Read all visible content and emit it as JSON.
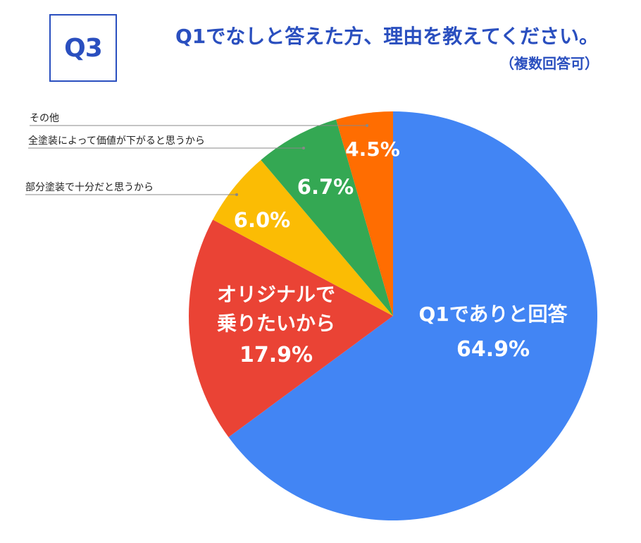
{
  "header": {
    "question_tag": "Q3",
    "title": "Q1でなしと答えた方、理由を教えてください。",
    "subtitle": "（複数回答可）"
  },
  "chart_data": {
    "type": "pie",
    "title": "Q1でなしと答えた方、理由を教えてください。",
    "subtitle": "（複数回答可）",
    "slices": [
      {
        "label": "Q1でありと回答",
        "value": 64.9,
        "display": "64.9%",
        "color": "#4285f4",
        "label_style": "inside"
      },
      {
        "label": "オリジナルで乗りたいから",
        "value": 17.9,
        "display": "17.9%",
        "color": "#ea4335",
        "label_style": "inside"
      },
      {
        "label": "部分塗装で十分だと思うから",
        "value": 6.0,
        "display": "6.0%",
        "color": "#fbbc04",
        "label_style": "leader"
      },
      {
        "label": "全塗装によって価値が下がると思うから",
        "value": 6.7,
        "display": "6.7%",
        "color": "#34a853",
        "label_style": "leader"
      },
      {
        "label": "その他",
        "value": 4.5,
        "display": "4.5%",
        "color": "#ff6d01",
        "label_style": "leader"
      }
    ]
  }
}
